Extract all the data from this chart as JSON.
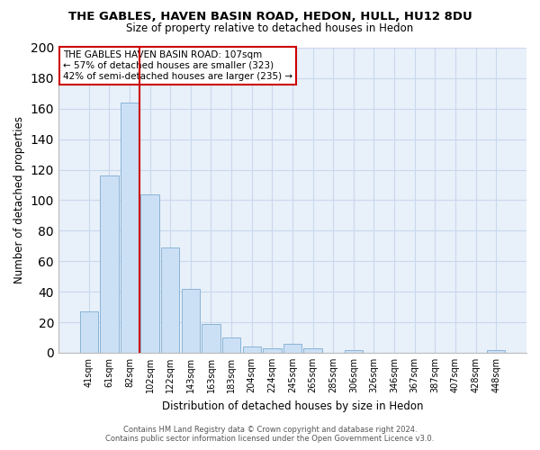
{
  "title": "THE GABLES, HAVEN BASIN ROAD, HEDON, HULL, HU12 8DU",
  "subtitle": "Size of property relative to detached houses in Hedon",
  "xlabel": "Distribution of detached houses by size in Hedon",
  "ylabel": "Number of detached properties",
  "bar_labels": [
    "41sqm",
    "61sqm",
    "82sqm",
    "102sqm",
    "122sqm",
    "143sqm",
    "163sqm",
    "183sqm",
    "204sqm",
    "224sqm",
    "245sqm",
    "265sqm",
    "285sqm",
    "306sqm",
    "326sqm",
    "346sqm",
    "367sqm",
    "387sqm",
    "407sqm",
    "428sqm",
    "448sqm"
  ],
  "bar_values": [
    27,
    116,
    164,
    104,
    69,
    42,
    19,
    10,
    4,
    3,
    6,
    3,
    0,
    2,
    0,
    0,
    0,
    0,
    0,
    0,
    2
  ],
  "bar_color": "#cce0f5",
  "bar_edge_color": "#8ab4d4",
  "vline_color": "#cc0000",
  "vline_index": 3,
  "ylim": [
    0,
    200
  ],
  "yticks": [
    0,
    20,
    40,
    60,
    80,
    100,
    120,
    140,
    160,
    180,
    200
  ],
  "annotation_title": "THE GABLES HAVEN BASIN ROAD: 107sqm",
  "annotation_line1": "← 57% of detached houses are smaller (323)",
  "annotation_line2": "42% of semi-detached houses are larger (235) →",
  "annotation_box_color": "#ffffff",
  "annotation_box_edge": "#cc0000",
  "footer1": "Contains HM Land Registry data © Crown copyright and database right 2024.",
  "footer2": "Contains public sector information licensed under the Open Government Licence v3.0.",
  "background_color": "#ffffff",
  "grid_color": "#c8d8ec",
  "title_fontsize": 9.5,
  "subtitle_fontsize": 8.5,
  "ylabel_fontsize": 8.5,
  "xlabel_fontsize": 8.5
}
